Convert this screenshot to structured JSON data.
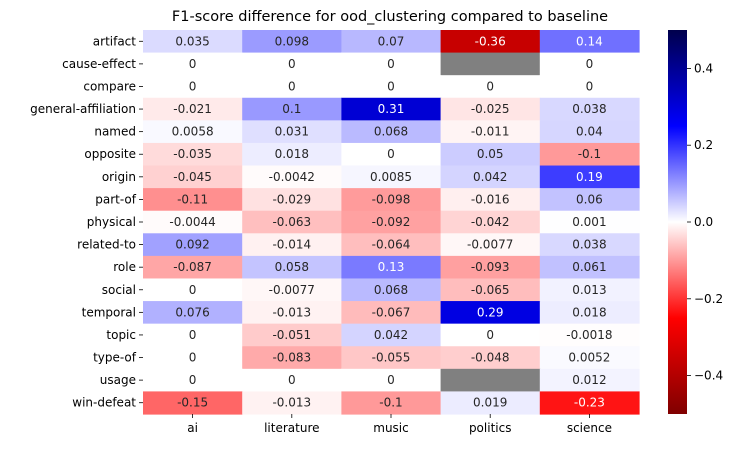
{
  "chart_data": {
    "type": "heatmap",
    "title": "F1-score difference for ood_clustering compared to baseline",
    "xlabel": "",
    "ylabel": "",
    "columns": [
      "ai",
      "literature",
      "music",
      "politics",
      "science"
    ],
    "rows": [
      "artifact",
      "cause-effect",
      "compare",
      "general-affiliation",
      "named",
      "opposite",
      "origin",
      "part-of",
      "physical",
      "related-to",
      "role",
      "social",
      "temporal",
      "topic",
      "type-of",
      "usage",
      "win-defeat"
    ],
    "values": [
      [
        0.035,
        0.098,
        0.07,
        -0.36,
        0.14
      ],
      [
        0,
        0,
        0,
        null,
        0
      ],
      [
        0,
        0,
        0,
        0,
        0
      ],
      [
        -0.021,
        0.1,
        0.31,
        -0.025,
        0.038
      ],
      [
        0.0058,
        0.031,
        0.068,
        -0.011,
        0.04
      ],
      [
        -0.035,
        0.018,
        0,
        0.05,
        -0.1
      ],
      [
        -0.045,
        -0.0042,
        0.0085,
        0.042,
        0.19
      ],
      [
        -0.11,
        -0.029,
        -0.098,
        -0.016,
        0.06
      ],
      [
        -0.0044,
        -0.063,
        -0.092,
        -0.042,
        0.001
      ],
      [
        0.092,
        -0.014,
        -0.064,
        -0.0077,
        0.038
      ],
      [
        -0.087,
        0.058,
        0.13,
        -0.093,
        0.061
      ],
      [
        0,
        -0.0077,
        0.068,
        -0.065,
        0.013
      ],
      [
        0.076,
        -0.013,
        -0.067,
        0.29,
        0.018
      ],
      [
        0,
        -0.051,
        0.042,
        0,
        -0.0018
      ],
      [
        0,
        -0.083,
        -0.055,
        -0.048,
        0.0052
      ],
      [
        0,
        0,
        0,
        null,
        0.012
      ],
      [
        -0.15,
        -0.013,
        -0.1,
        0.019,
        -0.23
      ]
    ],
    "missing_color": "#808080",
    "colormap": "seismic_r",
    "colorbar": {
      "range": [
        -0.5,
        0.5
      ],
      "ticks": [
        -0.4,
        -0.2,
        0.0,
        0.2,
        0.4
      ],
      "tick_labels": [
        "−0.4",
        "−0.2",
        "0.0",
        "0.2",
        "0.4"
      ]
    },
    "legend": "none",
    "grid": false
  }
}
